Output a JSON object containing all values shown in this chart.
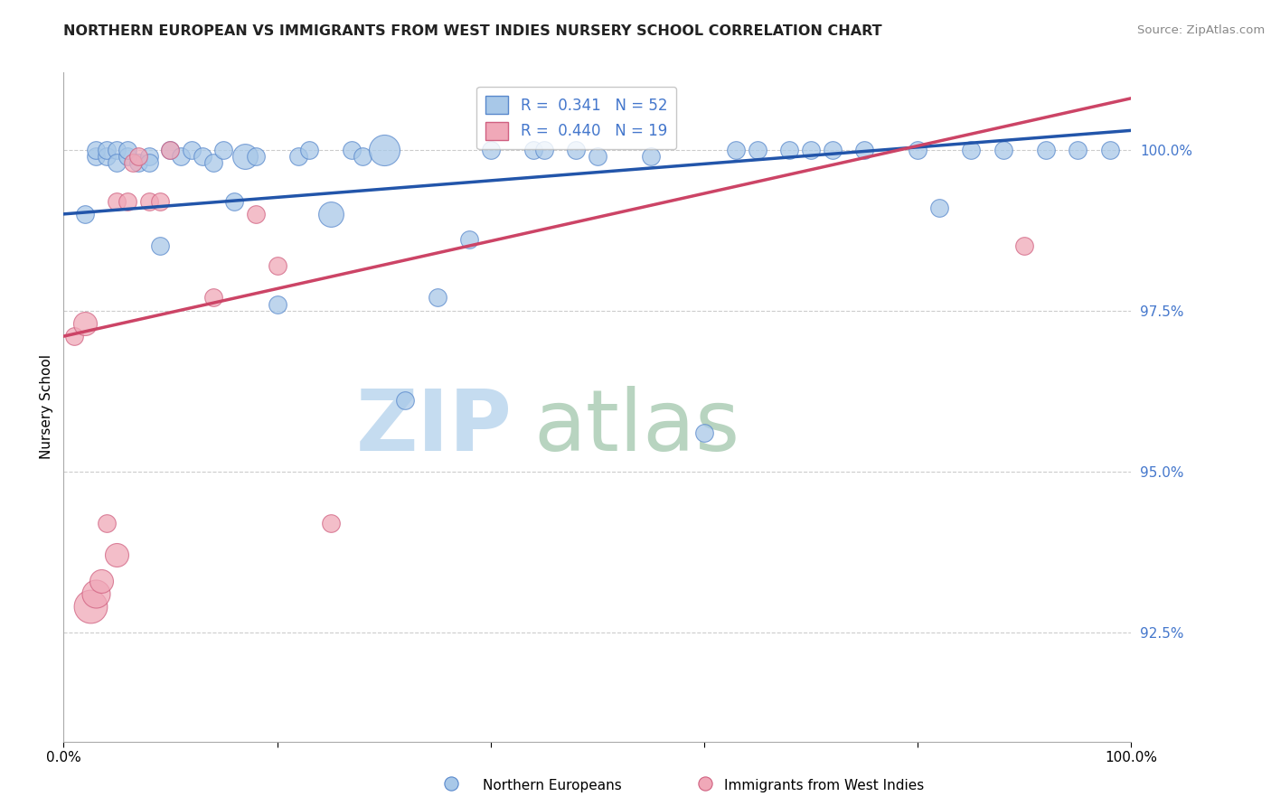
{
  "title": "NORTHERN EUROPEAN VS IMMIGRANTS FROM WEST INDIES NURSERY SCHOOL CORRELATION CHART",
  "source": "Source: ZipAtlas.com",
  "ylabel": "Nursery School",
  "xmin": 0.0,
  "xmax": 1.0,
  "ymin": 0.908,
  "ymax": 1.012,
  "yticks": [
    0.925,
    0.95,
    0.975,
    1.0
  ],
  "yticklabels": [
    "92.5%",
    "95.0%",
    "97.5%",
    "100.0%"
  ],
  "xticks": [
    0.0,
    0.2,
    0.4,
    0.6,
    0.8,
    1.0
  ],
  "xticklabels": [
    "0.0%",
    "",
    "",
    "",
    "",
    "100.0%"
  ],
  "legend_blue_label": "R =  0.341   N = 52",
  "legend_pink_label": "R =  0.440   N = 19",
  "blue_color": "#A8C8E8",
  "pink_color": "#F0A8B8",
  "blue_edge_color": "#5888CC",
  "pink_edge_color": "#D06080",
  "blue_line_color": "#2255AA",
  "pink_line_color": "#CC4466",
  "tick_label_color": "#4477CC",
  "blue_points_x": [
    0.02,
    0.03,
    0.03,
    0.04,
    0.04,
    0.05,
    0.05,
    0.06,
    0.06,
    0.07,
    0.08,
    0.08,
    0.09,
    0.1,
    0.11,
    0.12,
    0.13,
    0.14,
    0.15,
    0.16,
    0.17,
    0.18,
    0.2,
    0.22,
    0.23,
    0.25,
    0.27,
    0.28,
    0.3,
    0.32,
    0.35,
    0.38,
    0.4,
    0.44,
    0.45,
    0.48,
    0.5,
    0.55,
    0.6,
    0.63,
    0.65,
    0.68,
    0.7,
    0.72,
    0.75,
    0.8,
    0.82,
    0.85,
    0.88,
    0.92,
    0.95,
    0.98
  ],
  "blue_points_y": [
    0.99,
    0.999,
    1.0,
    0.999,
    1.0,
    1.0,
    0.998,
    0.999,
    1.0,
    0.998,
    0.999,
    0.998,
    0.985,
    1.0,
    0.999,
    1.0,
    0.999,
    0.998,
    1.0,
    0.992,
    0.999,
    0.999,
    0.976,
    0.999,
    1.0,
    0.99,
    1.0,
    0.999,
    1.0,
    0.961,
    0.977,
    0.986,
    1.0,
    1.0,
    1.0,
    1.0,
    0.999,
    0.999,
    0.956,
    1.0,
    1.0,
    1.0,
    1.0,
    1.0,
    1.0,
    1.0,
    0.991,
    1.0,
    1.0,
    1.0,
    1.0,
    1.0
  ],
  "blue_points_size": [
    200,
    200,
    200,
    200,
    200,
    200,
    200,
    200,
    200,
    200,
    200,
    200,
    200,
    200,
    200,
    200,
    200,
    200,
    200,
    200,
    400,
    200,
    200,
    200,
    200,
    400,
    200,
    200,
    600,
    200,
    200,
    200,
    200,
    200,
    200,
    200,
    200,
    200,
    200,
    200,
    200,
    200,
    200,
    200,
    200,
    200,
    200,
    200,
    200,
    200,
    200,
    200
  ],
  "pink_points_x": [
    0.01,
    0.02,
    0.025,
    0.03,
    0.035,
    0.04,
    0.05,
    0.05,
    0.06,
    0.065,
    0.07,
    0.08,
    0.09,
    0.1,
    0.14,
    0.18,
    0.2,
    0.25,
    0.9
  ],
  "pink_points_y": [
    0.971,
    0.973,
    0.929,
    0.931,
    0.933,
    0.942,
    0.937,
    0.992,
    0.992,
    0.998,
    0.999,
    0.992,
    0.992,
    1.0,
    0.977,
    0.99,
    0.982,
    0.942,
    0.985
  ],
  "pink_points_size": [
    200,
    350,
    700,
    500,
    350,
    200,
    350,
    200,
    200,
    200,
    200,
    200,
    200,
    200,
    200,
    200,
    200,
    200,
    200
  ],
  "blue_trend_x0": 0.0,
  "blue_trend_x1": 1.0,
  "blue_trend_y0": 0.99,
  "blue_trend_y1": 1.003,
  "pink_trend_x0": 0.0,
  "pink_trend_x1": 1.0,
  "pink_trend_y0": 0.971,
  "pink_trend_y1": 1.008,
  "watermark_zip_color": "#C5DCF0",
  "watermark_atlas_color": "#B8D4C0"
}
